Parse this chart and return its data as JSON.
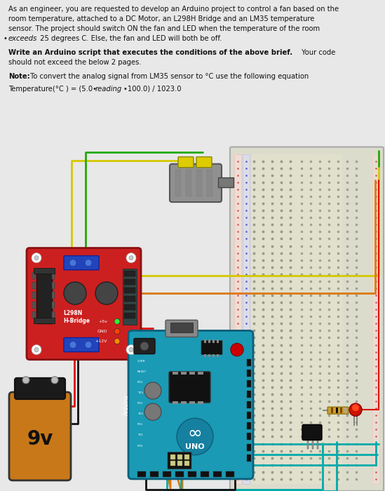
{
  "bg_color": "#d5d5d5",
  "text_bg": "#e8e8e8",
  "text_color": "#111111",
  "para1_lines": [
    "As an engineer, you are requested to develop an Arduino project to control a fan based on the",
    "room temperature, attached to a DC Motor, an L298H Bridge and an LM35 temperature",
    "sensor. The project should switch ON the fan and LED when the temperature of the room",
    "exceeds 25 degrees C. Else, the fan and LED will both be off."
  ],
  "bold_line": "Write an Arduino script that executes the conditions of the above brief.",
  "regular_line": " Your code",
  "should_line": "should not exceed the below 2 pages.",
  "note_bold": "Note:",
  "note_rest": " To convert the analog signal from LM35 sensor to °C use the following equation",
  "formula": "Temperature(°C ) = (5.0•reading•100.0) / 1023.0",
  "arduino_blue": "#1a9ab5",
  "l298n_red": "#cc2020",
  "l298n_blue": "#2244bb",
  "battery_orange": "#c87818",
  "motor_gray": "#888888",
  "breadboard_bg": "#e8e8d0",
  "breadboard_edge": "#aaaaaa",
  "wire_yellow": "#d4c800",
  "wire_green": "#22aa00",
  "wire_red": "#dd1100",
  "wire_orange": "#dd7700",
  "wire_teal": "#00aaaa",
  "wire_black": "#111111",
  "wire_gray": "#888888"
}
